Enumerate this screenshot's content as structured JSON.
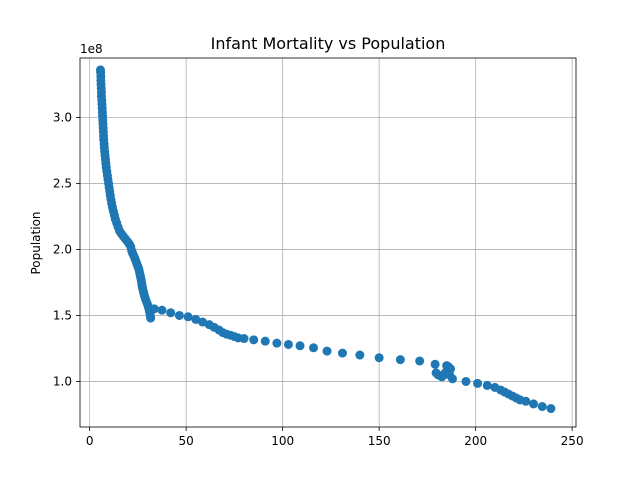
{
  "chart_data": {
    "type": "scatter",
    "title": "Infant Mortality vs Population",
    "xlabel": "",
    "ylabel": "Population",
    "y_offset_text": "1e8",
    "xlim": [
      -5,
      252
    ],
    "ylim": [
      65500000,
      345000000
    ],
    "xticks": [
      0,
      50,
      100,
      150,
      200,
      250
    ],
    "xtick_labels": [
      "0",
      "50",
      "100",
      "150",
      "200",
      "250"
    ],
    "yticks": [
      100000000,
      150000000,
      200000000,
      250000000,
      300000000
    ],
    "ytick_labels": [
      "1.0",
      "1.5",
      "2.0",
      "2.5",
      "3.0"
    ],
    "grid": true,
    "marker_color": "#1f77b4",
    "points": [
      [
        5.6,
        336000000
      ],
      [
        5.7,
        334000000
      ],
      [
        5.8,
        331000000
      ],
      [
        5.8,
        328000000
      ],
      [
        5.9,
        325000000
      ],
      [
        6.0,
        322000000
      ],
      [
        6.1,
        319000000
      ],
      [
        6.1,
        316000000
      ],
      [
        6.3,
        313000000
      ],
      [
        6.4,
        310000000
      ],
      [
        6.5,
        307000000
      ],
      [
        6.6,
        304000000
      ],
      [
        6.7,
        301000000
      ],
      [
        6.8,
        298000000
      ],
      [
        6.9,
        295000000
      ],
      [
        7.0,
        292000000
      ],
      [
        7.1,
        289000000
      ],
      [
        7.2,
        286000000
      ],
      [
        7.3,
        283000000
      ],
      [
        7.5,
        280000000
      ],
      [
        7.6,
        277000000
      ],
      [
        7.8,
        274000000
      ],
      [
        8.0,
        271000000
      ],
      [
        8.2,
        268000000
      ],
      [
        8.4,
        265000000
      ],
      [
        8.6,
        262000000
      ],
      [
        8.9,
        259000000
      ],
      [
        9.2,
        256000000
      ],
      [
        9.5,
        253000000
      ],
      [
        9.8,
        250000000
      ],
      [
        10.1,
        247000000
      ],
      [
        10.4,
        244000000
      ],
      [
        10.7,
        241000000
      ],
      [
        11.0,
        238000000
      ],
      [
        11.4,
        235000000
      ],
      [
        11.8,
        232000000
      ],
      [
        12.3,
        229000000
      ],
      [
        12.8,
        226000000
      ],
      [
        13.3,
        223000000
      ],
      [
        14.0,
        220000000
      ],
      [
        14.7,
        217000000
      ],
      [
        15.5,
        214000000
      ],
      [
        16.4,
        212000000
      ],
      [
        17.4,
        210000000
      ],
      [
        18.5,
        208000000
      ],
      [
        19.6,
        206000000
      ],
      [
        20.6,
        204000000
      ],
      [
        21.3,
        202000000
      ],
      [
        21.8,
        199000000
      ],
      [
        22.3,
        197000000
      ],
      [
        22.9,
        195000000
      ],
      [
        23.5,
        193000000
      ],
      [
        24.0,
        191000000
      ],
      [
        24.5,
        189000000
      ],
      [
        25.0,
        187000000
      ],
      [
        25.5,
        185000000
      ],
      [
        25.8,
        183000000
      ],
      [
        26.1,
        181000000
      ],
      [
        26.4,
        179000000
      ],
      [
        26.7,
        177000000
      ],
      [
        26.9,
        175000000
      ],
      [
        27.1,
        173000000
      ],
      [
        27.4,
        171000000
      ],
      [
        27.7,
        169000000
      ],
      [
        28.0,
        167000000
      ],
      [
        28.4,
        165000000
      ],
      [
        28.8,
        163000000
      ],
      [
        29.3,
        161000000
      ],
      [
        29.8,
        159000000
      ],
      [
        30.3,
        157000000
      ],
      [
        30.7,
        155000000
      ],
      [
        31.0,
        153000000
      ],
      [
        31.3,
        151000000
      ],
      [
        31.5,
        149000000
      ],
      [
        31.6,
        148000000
      ],
      [
        33.5,
        155000000
      ],
      [
        37.5,
        154000000
      ],
      [
        42.0,
        152000000
      ],
      [
        46.5,
        150000000
      ],
      [
        51.0,
        149000000
      ],
      [
        55.0,
        147000000
      ],
      [
        58.5,
        145000000
      ],
      [
        62.0,
        143000000
      ],
      [
        64.5,
        141000000
      ],
      [
        67.0,
        139000000
      ],
      [
        69.0,
        137000000
      ],
      [
        71.0,
        135800000
      ],
      [
        73.0,
        135000000
      ],
      [
        75.0,
        134000000
      ],
      [
        77.0,
        133000000
      ],
      [
        80.0,
        132500000
      ],
      [
        85.0,
        131500000
      ],
      [
        91.0,
        130500000
      ],
      [
        97.0,
        129000000
      ],
      [
        103.0,
        128000000
      ],
      [
        109.0,
        127000000
      ],
      [
        116.0,
        125500000
      ],
      [
        123.0,
        123000000
      ],
      [
        131.0,
        121500000
      ],
      [
        140.0,
        120000000
      ],
      [
        150.0,
        118000000
      ],
      [
        161.0,
        116500000
      ],
      [
        171.0,
        115500000
      ],
      [
        179.0,
        113000000
      ],
      [
        179.5,
        106500000
      ],
      [
        180.5,
        105000000
      ],
      [
        181.5,
        104500000
      ],
      [
        182.5,
        103500000
      ],
      [
        183.5,
        105000000
      ],
      [
        184.5,
        107000000
      ],
      [
        185.0,
        112000000
      ],
      [
        186.0,
        111000000
      ],
      [
        187.0,
        109500000
      ],
      [
        186.5,
        105000000
      ],
      [
        188.0,
        102000000
      ],
      [
        195.0,
        100000000
      ],
      [
        201.0,
        98500000
      ],
      [
        206.0,
        97000000
      ],
      [
        210.0,
        95500000
      ],
      [
        213.0,
        93500000
      ],
      [
        215.0,
        92000000
      ],
      [
        217.0,
        90500000
      ],
      [
        219.0,
        89000000
      ],
      [
        221.0,
        87500000
      ],
      [
        223.0,
        86000000
      ],
      [
        226.0,
        85000000
      ],
      [
        230.0,
        83000000
      ],
      [
        234.5,
        81000000
      ],
      [
        239.0,
        79500000
      ]
    ]
  }
}
